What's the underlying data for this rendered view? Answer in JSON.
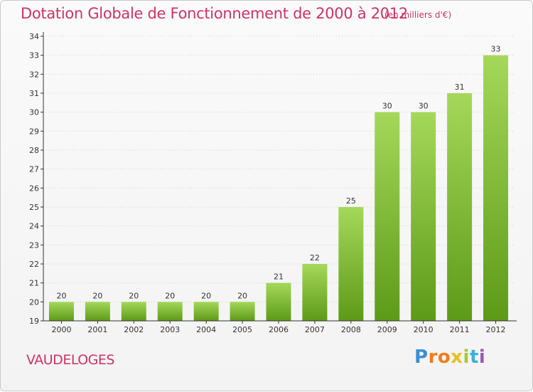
{
  "header": {
    "title": "Dotation Globale de Fonctionnement de 2000 à 2012",
    "unit": "(en milliers d'€)"
  },
  "footer": {
    "commune": "VAUDELOGES",
    "logo_letters": [
      "P",
      "r",
      "o",
      "x",
      "i",
      "t",
      "i"
    ],
    "logo_colors": [
      "#3b8fd6",
      "#f07d1a",
      "#f07d1a",
      "#e8c01f",
      "#a8c832",
      "#3bb0d8",
      "#9b59b6"
    ]
  },
  "colors": {
    "bar_light": "#a5d85a",
    "bar_dark": "#5d9a18",
    "axis": "#333333",
    "grid": "#cccccc",
    "title": "#cc3366"
  },
  "chart_data": {
    "type": "bar",
    "categories": [
      "2000",
      "2001",
      "2002",
      "2003",
      "2004",
      "2005",
      "2006",
      "2007",
      "2008",
      "2009",
      "2010",
      "2011",
      "2012"
    ],
    "values": [
      20,
      20,
      20,
      20,
      20,
      20,
      21,
      22,
      25,
      30,
      30,
      31,
      33
    ],
    "data_labels": [
      "20",
      "20",
      "20",
      "20",
      "20",
      "20",
      "21",
      "22",
      "25",
      "30",
      "30",
      "31",
      "33"
    ],
    "yticks": [
      "19",
      "20",
      "21",
      "22",
      "23",
      "24",
      "25",
      "26",
      "27",
      "28",
      "29",
      "30",
      "31",
      "32",
      "33",
      "34"
    ],
    "ylim": [
      19,
      34
    ],
    "grid": true,
    "legend": "none"
  }
}
